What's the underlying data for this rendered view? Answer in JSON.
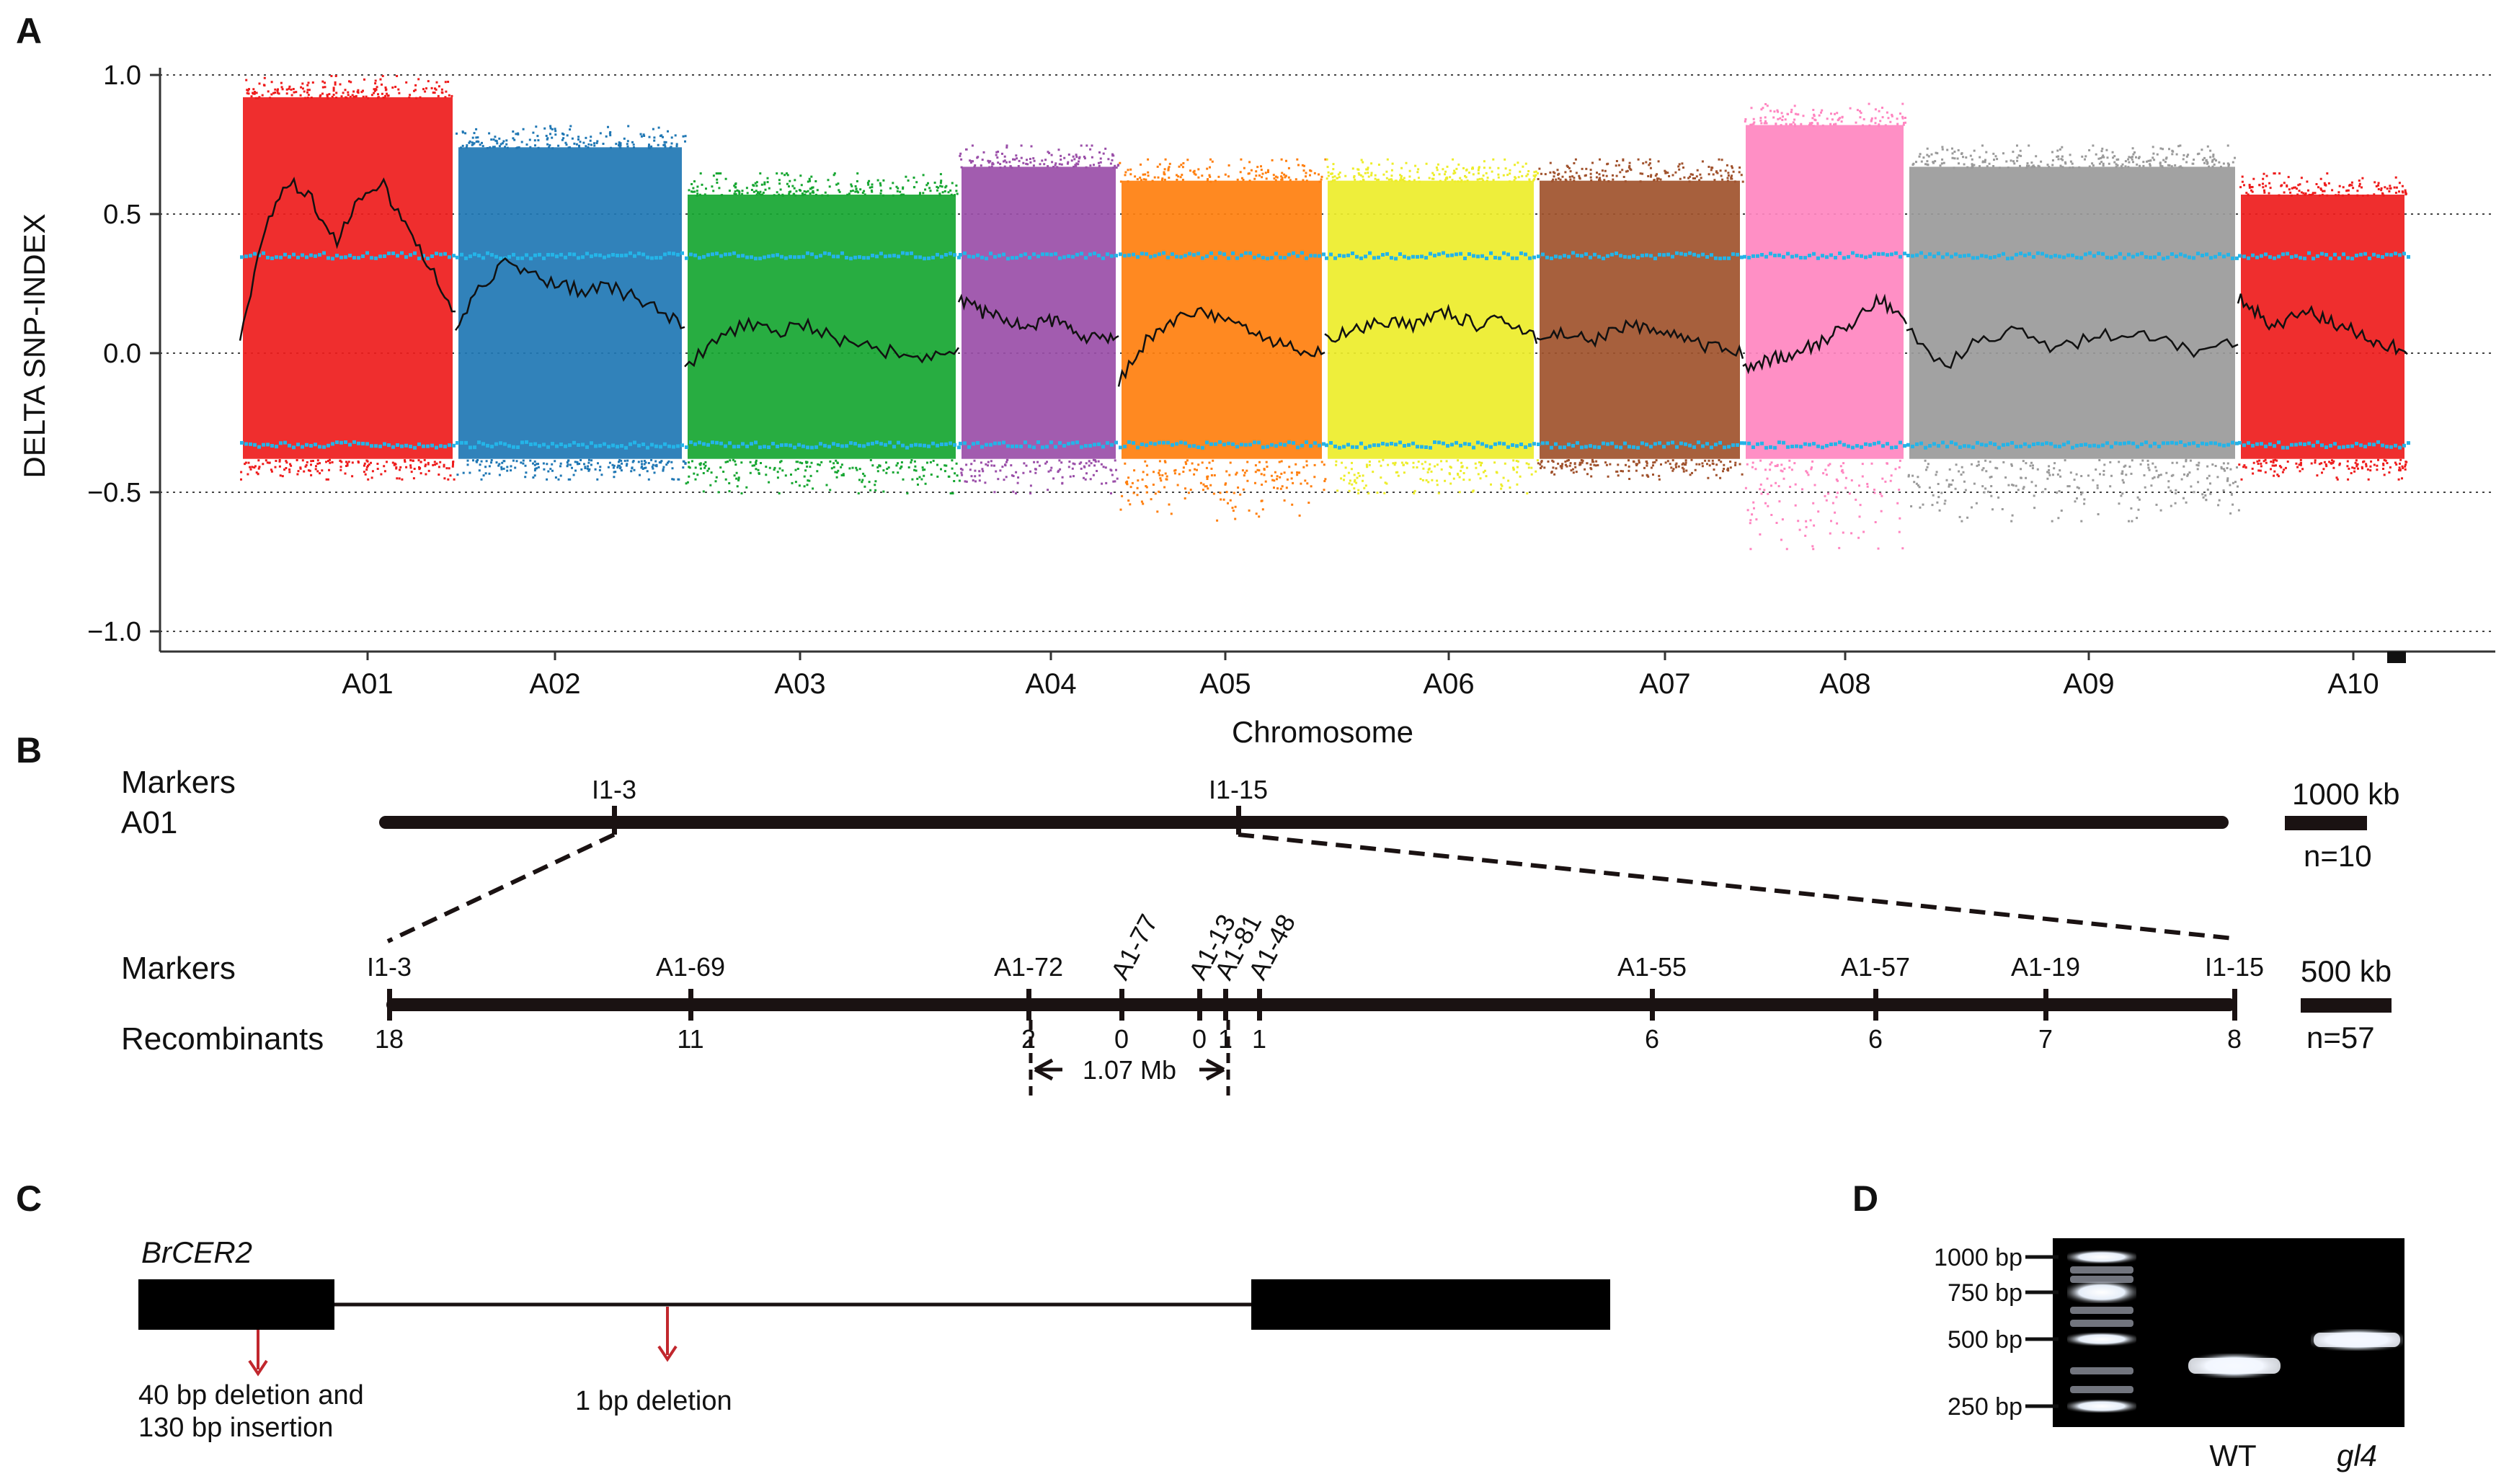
{
  "panels": {
    "a": "A",
    "b": "B",
    "c": "C",
    "d": "D"
  },
  "panel_a": {
    "ylabel": "DELTA SNP-INDEX",
    "xlabel": "Chromosome",
    "y_ticks": [
      "1.0",
      "0.5",
      "0.0",
      "−0.5",
      "−1.0"
    ],
    "y_values": [
      1.0,
      0.5,
      0.0,
      -0.5,
      -1.0
    ],
    "threshold_upper": 0.35,
    "threshold_lower": -0.33
  },
  "chart_data": {
    "type": "scatter",
    "title": "",
    "xlabel": "Chromosome",
    "ylabel": "DELTA SNP-INDEX",
    "ylim": [
      -1.0,
      1.0
    ],
    "grid": "dotted lines at -1.0, -0.5, 0.0, 0.5, 1.0",
    "categories": [
      "A01",
      "A02",
      "A03",
      "A04",
      "A05",
      "A06",
      "A07",
      "A08",
      "A09",
      "A10"
    ],
    "series": [
      {
        "name": "A01",
        "color": "#ee1c1c",
        "range": [
          -0.45,
          1.0
        ],
        "trend": [
          0.05,
          0.45,
          0.62,
          0.55,
          0.4,
          0.55,
          0.6,
          0.45,
          0.3,
          0.15
        ]
      },
      {
        "name": "A02",
        "color": "#1f77b4",
        "range": [
          -0.45,
          0.82
        ],
        "trend": [
          0.1,
          0.25,
          0.32,
          0.28,
          0.25,
          0.22,
          0.24,
          0.2,
          0.15,
          0.1
        ]
      },
      {
        "name": "A03",
        "color": "#16a631",
        "range": [
          -0.5,
          0.65
        ],
        "trend": [
          -0.05,
          0.05,
          0.1,
          0.08,
          0.1,
          0.05,
          0.02,
          0.0,
          -0.02,
          0.0
        ]
      },
      {
        "name": "A04",
        "color": "#9a4ea8",
        "range": [
          -0.5,
          0.75
        ],
        "trend": [
          0.2,
          0.15,
          0.12,
          0.1,
          0.12,
          0.08,
          0.05,
          0.05
        ]
      },
      {
        "name": "A05",
        "color": "#ff7f0e",
        "range": [
          -0.6,
          0.7
        ],
        "trend": [
          -0.1,
          0.05,
          0.12,
          0.15,
          0.1,
          0.05,
          0.02,
          0.0
        ]
      },
      {
        "name": "A06",
        "color": "#eded2a",
        "range": [
          -0.5,
          0.7
        ],
        "trend": [
          0.05,
          0.08,
          0.12,
          0.1,
          0.15,
          0.1,
          0.12,
          0.05
        ]
      },
      {
        "name": "A07",
        "color": "#a0522d",
        "range": [
          -0.45,
          0.7
        ],
        "trend": [
          0.05,
          0.08,
          0.05,
          0.1,
          0.08,
          0.05,
          0.02,
          0.0
        ]
      },
      {
        "name": "A08",
        "color": "#ff85c0",
        "range": [
          -0.7,
          0.9
        ],
        "trend": [
          -0.05,
          -0.02,
          0.0,
          0.05,
          0.1,
          0.2,
          0.1
        ]
      },
      {
        "name": "A09",
        "color": "#9a9a9a",
        "range": [
          -0.6,
          0.75
        ],
        "trend": [
          0.1,
          -0.05,
          0.05,
          0.08,
          0.02,
          0.05,
          0.08,
          0.05,
          0.0,
          0.05
        ]
      },
      {
        "name": "A10",
        "color": "#ee1c1c",
        "range": [
          -0.45,
          0.65
        ],
        "trend": [
          0.2,
          0.1,
          0.15,
          0.1,
          0.05,
          0.0
        ]
      }
    ]
  },
  "panel_b": {
    "top_row_label_1": "Markers",
    "top_row_label_2": "A01",
    "top_markers": [
      "I1-3",
      "I1-15"
    ],
    "top_scale": "1000 kb",
    "top_n": "n=10",
    "bottom_row_markers_label": "Markers",
    "bottom_row_recomb_label": "Recombinants",
    "fine_markers": [
      {
        "name": "I1-3",
        "count": "18"
      },
      {
        "name": "A1-69",
        "count": "11"
      },
      {
        "name": "A1-72",
        "count": "2"
      },
      {
        "name": "A1-77",
        "count": "0"
      },
      {
        "name": "A1-13",
        "count": "0"
      },
      {
        "name": "A1-81",
        "count": "1"
      },
      {
        "name": "A1-48",
        "count": "1"
      },
      {
        "name": "A1-55",
        "count": "6"
      },
      {
        "name": "A1-57",
        "count": "6"
      },
      {
        "name": "A1-19",
        "count": "7"
      },
      {
        "name": "I1-15",
        "count": "8"
      }
    ],
    "interval": "1.07 Mb",
    "bottom_scale": "500 kb",
    "bottom_n": "n=57"
  },
  "panel_c": {
    "gene": "BrCER2",
    "mutation_1_line1": "40 bp deletion and",
    "mutation_1_line2": "130 bp insertion",
    "mutation_2": "1 bp deletion"
  },
  "panel_d": {
    "ladder": [
      "1000 bp",
      "750 bp",
      "500 bp",
      "250 bp"
    ],
    "lanes": [
      "WT",
      "gl4"
    ]
  }
}
